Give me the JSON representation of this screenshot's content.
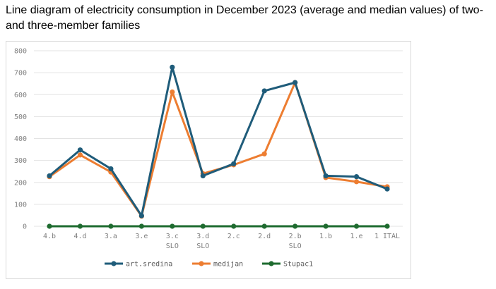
{
  "title": "Line diagram of electricity consumption in December 2023 (average and median values) of two-and three-member families",
  "chart_data": {
    "type": "line",
    "categories": [
      {
        "line1": "4.b",
        "line2": ""
      },
      {
        "line1": "4.d",
        "line2": ""
      },
      {
        "line1": "3.a",
        "line2": ""
      },
      {
        "line1": "3.e",
        "line2": ""
      },
      {
        "line1": "3.c",
        "line2": "SLO"
      },
      {
        "line1": "3.d",
        "line2": "SLO"
      },
      {
        "line1": "2.c",
        "line2": ""
      },
      {
        "line1": "2.d",
        "line2": ""
      },
      {
        "line1": "2.b",
        "line2": "SLO"
      },
      {
        "line1": "1.b",
        "line2": ""
      },
      {
        "line1": "1.e",
        "line2": ""
      },
      {
        "line1": "1 ITAL",
        "line2": ""
      }
    ],
    "series": [
      {
        "name": "art.sredina",
        "color": "#1f5c7a",
        "values": [
          230,
          348,
          262,
          48,
          725,
          230,
          285,
          617,
          655,
          230,
          226,
          170
        ]
      },
      {
        "name": "medijan",
        "color": "#ed7d31",
        "values": [
          226,
          325,
          247,
          46,
          612,
          240,
          280,
          330,
          655,
          222,
          203,
          180
        ]
      },
      {
        "name": "Stupac1",
        "color": "#1e6b2f",
        "values": [
          0,
          0,
          0,
          0,
          0,
          0,
          0,
          0,
          0,
          0,
          0,
          0
        ]
      }
    ],
    "ylim": [
      0,
      800
    ],
    "yticks": [
      "0",
      "100",
      "200",
      "300",
      "400",
      "500",
      "600",
      "700",
      "800"
    ],
    "grid": true,
    "legend_position": "bottom"
  }
}
